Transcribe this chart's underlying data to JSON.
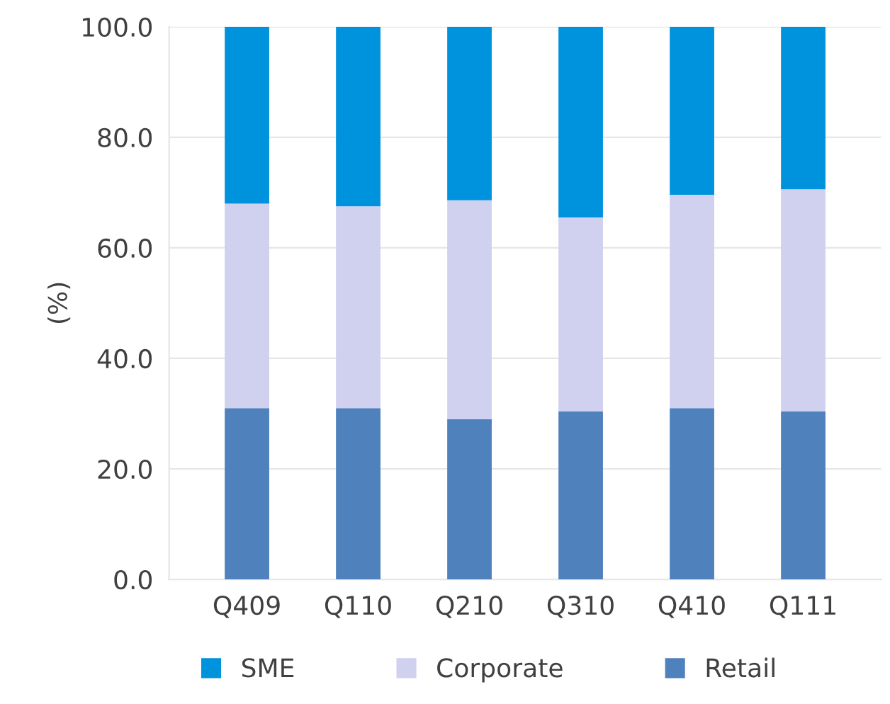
{
  "chart_data": {
    "type": "bar",
    "stacked": true,
    "ylabel": "(%)",
    "categories": [
      "Q409",
      "Q110",
      "Q210",
      "Q310",
      "Q410",
      "Q111"
    ],
    "series": [
      {
        "name": "Retail",
        "color": "#4f81bd",
        "values": [
          31.0,
          31.0,
          29.0,
          30.4,
          31.0,
          30.4
        ]
      },
      {
        "name": "Corporate",
        "color": "#d0d0ef",
        "values": [
          37.0,
          36.5,
          39.6,
          35.1,
          38.6,
          40.2
        ]
      },
      {
        "name": "SME",
        "color": "#0093dd",
        "values": [
          32.0,
          32.5,
          31.4,
          34.5,
          30.4,
          29.4
        ]
      }
    ],
    "ylim": [
      0,
      100
    ],
    "yticks": [
      {
        "value": 0,
        "label": "0.0"
      },
      {
        "value": 20,
        "label": "20.0"
      },
      {
        "value": 40,
        "label": "40.0"
      },
      {
        "value": 60,
        "label": "60.0"
      },
      {
        "value": 80,
        "label": "80.0"
      },
      {
        "value": 100,
        "label": "100.0"
      }
    ],
    "grid": "y",
    "legend": "bottom"
  }
}
